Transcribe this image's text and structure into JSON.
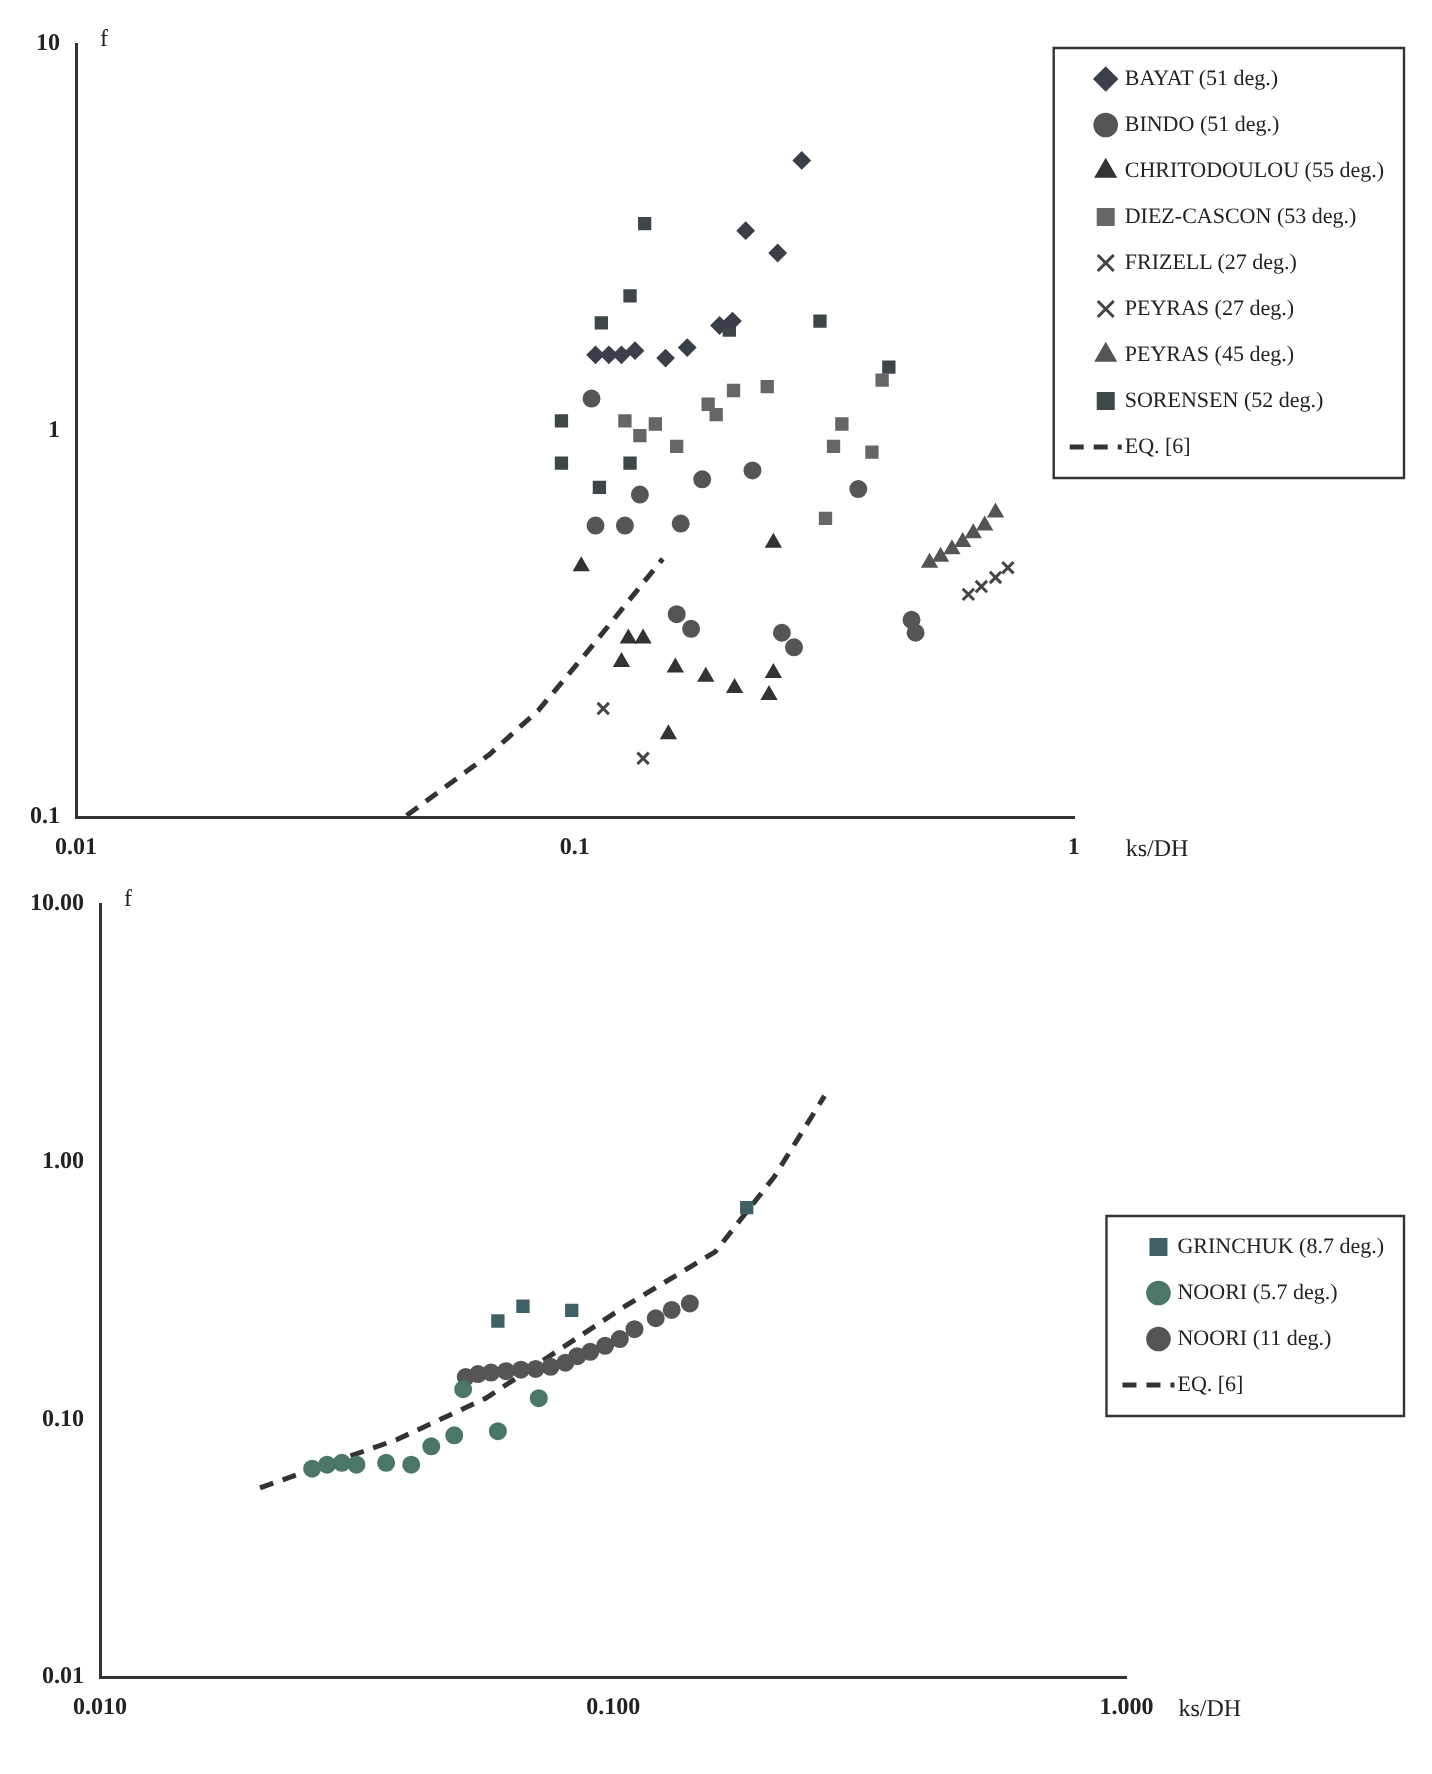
{
  "chart_data": [
    {
      "type": "scatter",
      "xlabel": "ks/DH",
      "ylabel": "f",
      "log": "xy",
      "grid": false,
      "legend": "top right",
      "xlim": [
        0.01,
        1
      ],
      "ylim": [
        0.1,
        10
      ],
      "xticks": [
        0.01,
        0.1,
        1
      ],
      "yticks": [
        0.1,
        1,
        10
      ],
      "series": [
        {
          "name": "BAYAT (51 deg.)",
          "color": "#3a3f4a",
          "marker": "diamond",
          "x": [
            0.285,
            0.22,
            0.255,
            0.207,
            0.195,
            0.11,
            0.117,
            0.124,
            0.132,
            0.152,
            0.168
          ],
          "values": [
            5.0,
            3.29,
            2.88,
            1.92,
            1.87,
            1.57,
            1.57,
            1.57,
            1.61,
            1.54,
            1.64
          ]
        },
        {
          "name": "BINDO (51 deg.)",
          "color": "#555555",
          "marker": "circle",
          "x": [
            0.108,
            0.135,
            0.11,
            0.126,
            0.163,
            0.18,
            0.227,
            0.37,
            0.16,
            0.171,
            0.26,
            0.275,
            0.473,
            0.482
          ],
          "values": [
            1.21,
            0.683,
            0.568,
            0.568,
            0.575,
            0.748,
            0.789,
            0.706,
            0.335,
            0.307,
            0.3,
            0.275,
            0.324,
            0.3
          ]
        },
        {
          "name": "CHRITODOULOU (55 deg.)",
          "color": "#333333",
          "marker": "triangle",
          "x": [
            0.103,
            0.128,
            0.137,
            0.124,
            0.159,
            0.183,
            0.209,
            0.245,
            0.25,
            0.25,
            0.154
          ],
          "values": [
            0.446,
            0.29,
            0.29,
            0.252,
            0.244,
            0.231,
            0.216,
            0.207,
            0.236,
            0.513,
            0.164
          ]
        },
        {
          "name": "DIEZ-CASCON (53 deg.)",
          "color": "#666666",
          "marker": "square",
          "x": [
            0.126,
            0.145,
            0.135,
            0.16,
            0.185,
            0.192,
            0.208,
            0.243,
            0.343,
            0.33,
            0.394,
            0.318,
            0.413
          ],
          "values": [
            1.06,
            1.04,
            0.97,
            0.91,
            1.17,
            1.1,
            1.27,
            1.3,
            1.04,
            0.91,
            0.88,
            0.593,
            1.35
          ]
        },
        {
          "name": "FRIZELL (27 deg.)",
          "color": "#444444",
          "marker": "cross",
          "x": [
            0.114,
            0.137
          ],
          "values": [
            0.191,
            0.142
          ]
        },
        {
          "name": "PEYRAS (27 deg.)",
          "color": "#444444",
          "marker": "cross",
          "x": [
            0.615,
            0.653,
            0.697,
            0.738
          ],
          "values": [
            0.377,
            0.395,
            0.417,
            0.442
          ]
        },
        {
          "name": "PEYRAS (45 deg.)",
          "color": "#555555",
          "marker": "triangle",
          "x": [
            0.514,
            0.541,
            0.57,
            0.599,
            0.629,
            0.663,
            0.697
          ],
          "values": [
            0.455,
            0.472,
            0.493,
            0.515,
            0.543,
            0.568,
            0.614
          ]
        },
        {
          "name": "SORENSEN (52 deg.)",
          "color": "#3d4747",
          "marker": "square",
          "x": [
            0.138,
            0.129,
            0.113,
            0.31,
            0.094,
            0.094,
            0.112,
            0.129,
            0.204,
            0.426
          ],
          "values": [
            3.43,
            2.23,
            1.9,
            1.92,
            1.06,
            0.824,
            0.713,
            0.824,
            1.82,
            1.46
          ]
        },
        {
          "name": "EQ. [6]",
          "type": "line",
          "color": "#333333",
          "marker": "none",
          "line_style": "dashed",
          "x": [
            0.046,
            0.0673,
            0.0845,
            0.106,
            0.15
          ],
          "values": [
            0.101,
            0.145,
            0.189,
            0.268,
            0.466
          ]
        }
      ]
    },
    {
      "type": "scatter",
      "xlabel": "ks/DH",
      "ylabel": "f",
      "log": "xy",
      "grid": false,
      "legend": "right",
      "xlim": [
        0.01,
        1
      ],
      "ylim": [
        0.01,
        10
      ],
      "xticks": [
        {
          "value": 0.01,
          "label": "0.010"
        },
        {
          "value": 0.1,
          "label": "0.100"
        },
        {
          "value": 1,
          "label": "1.000"
        }
      ],
      "yticks": [
        {
          "value": 0.01,
          "label": "0.01"
        },
        {
          "value": 0.1,
          "label": "0.10"
        },
        {
          "value": 1,
          "label": "1.00"
        },
        {
          "value": 10,
          "label": "10.00"
        }
      ],
      "series": [
        {
          "name": "GRINCHUK (8.7 deg.)",
          "color": "#3f6166",
          "marker": "square",
          "x": [
            0.0596,
            0.0667,
            0.083,
            0.182
          ],
          "values": [
            0.241,
            0.275,
            0.265,
            0.664
          ]
        },
        {
          "name": "NOORI (5.7 deg.)",
          "color": "#4a7766",
          "marker": "circle",
          "x": [
            0.0259,
            0.0277,
            0.0296,
            0.0316,
            0.0361,
            0.0404,
            0.0442,
            0.049,
            0.0596,
            0.0716,
            0.051
          ],
          "values": [
            0.0644,
            0.0668,
            0.0679,
            0.0668,
            0.0679,
            0.0668,
            0.0787,
            0.0868,
            0.0901,
            0.121,
            0.131
          ]
        },
        {
          "name": "NOORI (11 deg.)",
          "color": "#555555",
          "marker": "circle",
          "x": [
            0.0516,
            0.0545,
            0.0578,
            0.0618,
            0.0661,
            0.0706,
            0.0755,
            0.0807,
            0.0851,
            0.0902,
            0.0964,
            0.103,
            0.11,
            0.121,
            0.13,
            0.141
          ],
          "values": [
            0.146,
            0.15,
            0.152,
            0.154,
            0.156,
            0.157,
            0.16,
            0.166,
            0.176,
            0.183,
            0.193,
            0.205,
            0.224,
            0.247,
            0.266,
            0.282
          ]
        },
        {
          "name": "EQ. [6]",
          "type": "line",
          "color": "#333333",
          "marker": "none",
          "line_style": "dashed",
          "x": [
            0.0205,
            0.0379,
            0.0565,
            0.1054,
            0.158,
            0.206,
            0.258
          ],
          "values": [
            0.0543,
            0.0836,
            0.121,
            0.275,
            0.447,
            0.875,
            1.8
          ]
        }
      ]
    }
  ]
}
